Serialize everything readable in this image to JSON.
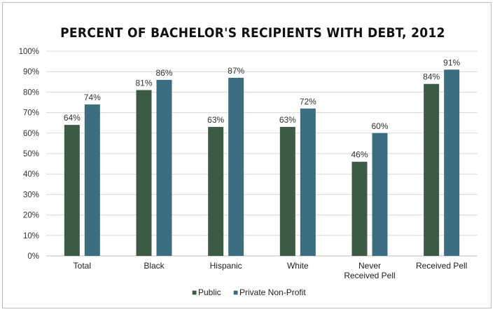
{
  "chart_data": {
    "type": "bar",
    "title": "PERCENT OF BACHELOR'S RECIPIENTS WITH DEBT, 2012",
    "categories": [
      "Total",
      "Black",
      "Hispanic",
      "White",
      "Never Received Pell",
      "Received Pell"
    ],
    "category_lines": [
      [
        "Total"
      ],
      [
        "Black"
      ],
      [
        "Hispanic"
      ],
      [
        "White"
      ],
      [
        "Never",
        "Received Pell"
      ],
      [
        "Received Pell"
      ]
    ],
    "series": [
      {
        "name": "Public",
        "values": [
          64,
          81,
          63,
          63,
          46,
          84
        ],
        "labels": [
          "64%",
          "81%",
          "63%",
          "63%",
          "46%",
          "84%"
        ],
        "color": "#3d5a45"
      },
      {
        "name": "Private Non-Profit",
        "values": [
          74,
          86,
          87,
          72,
          60,
          91
        ],
        "labels": [
          "74%",
          "86%",
          "87%",
          "72%",
          "60%",
          "91%"
        ],
        "color": "#3b6e80"
      }
    ],
    "ylim": [
      0,
      100
    ],
    "yticks": [
      0,
      10,
      20,
      30,
      40,
      50,
      60,
      70,
      80,
      90,
      100
    ],
    "ytick_labels": [
      "0%",
      "10%",
      "20%",
      "30%",
      "40%",
      "50%",
      "60%",
      "70%",
      "80%",
      "90%",
      "100%"
    ],
    "grid": true,
    "legend": "bottom",
    "legend_marker": "■"
  }
}
